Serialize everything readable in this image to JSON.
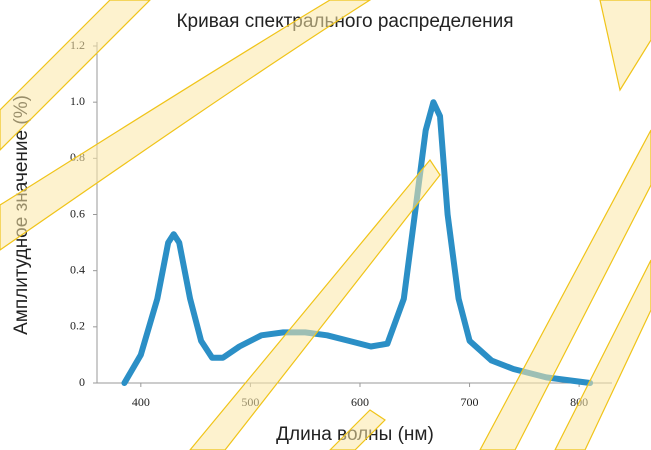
{
  "chart_data": {
    "type": "line",
    "title": "Кривая спектрального распределения",
    "x_label": "Длина волны (нм)",
    "y_label": "Амплитудное значение (%)",
    "x": [
      385,
      400,
      415,
      425,
      430,
      435,
      445,
      455,
      465,
      475,
      490,
      510,
      530,
      550,
      570,
      590,
      610,
      625,
      640,
      650,
      660,
      667,
      673,
      680,
      690,
      700,
      720,
      740,
      770,
      810
    ],
    "values": [
      0.0,
      0.1,
      0.3,
      0.5,
      0.53,
      0.5,
      0.3,
      0.15,
      0.09,
      0.09,
      0.13,
      0.17,
      0.18,
      0.18,
      0.17,
      0.15,
      0.13,
      0.14,
      0.3,
      0.6,
      0.9,
      1.0,
      0.95,
      0.6,
      0.3,
      0.15,
      0.08,
      0.05,
      0.02,
      0.0
    ],
    "color": "#2b8fc6",
    "xlim": [
      360,
      830
    ],
    "ylim": [
      0,
      1.2
    ],
    "xticks": [
      400,
      500,
      600,
      700,
      800
    ],
    "yticks": [
      0,
      0.2,
      0.4,
      0.6,
      0.8,
      {
        "value": 1,
        "label": "1.0"
      },
      1.2
    ],
    "grid": false
  }
}
